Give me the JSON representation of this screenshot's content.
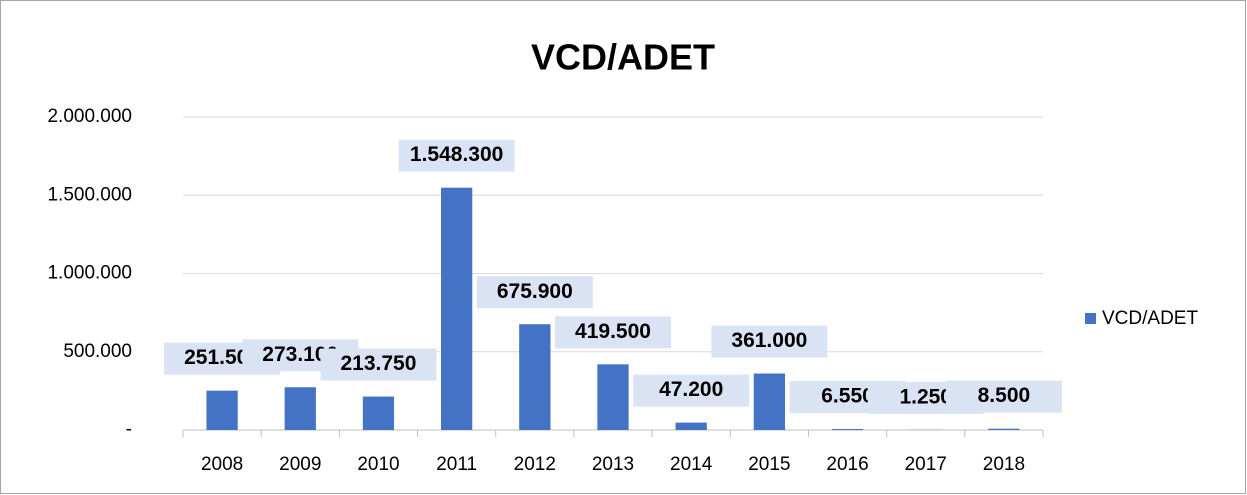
{
  "chart_data": {
    "type": "bar",
    "title": "VCD/ADET",
    "categories": [
      "2008",
      "2009",
      "2010",
      "2011",
      "2012",
      "2013",
      "2014",
      "2015",
      "2016",
      "2017",
      "2018"
    ],
    "series": [
      {
        "name": "VCD/ADET",
        "color": "#4472c4",
        "values": [
          251500,
          273100,
          213750,
          1548300,
          675900,
          419500,
          47200,
          361000,
          6550,
          1250,
          8500
        ],
        "value_labels": [
          "251.500",
          "273.100",
          "213.750",
          "1.548.300",
          "675.900",
          "419.500",
          "47.200",
          "361.000",
          "6.550",
          "1.250",
          "8.500"
        ]
      }
    ],
    "ylim": [
      0,
      2000000
    ],
    "yticks": [
      {
        "value": 0,
        "label": "-"
      },
      {
        "value": 500000,
        "label": "500.000"
      },
      {
        "value": 1000000,
        "label": "1.000.000"
      },
      {
        "value": 1500000,
        "label": "1.500.000"
      },
      {
        "value": 2000000,
        "label": "2.000.000"
      }
    ],
    "grid": true,
    "legend": "right"
  }
}
